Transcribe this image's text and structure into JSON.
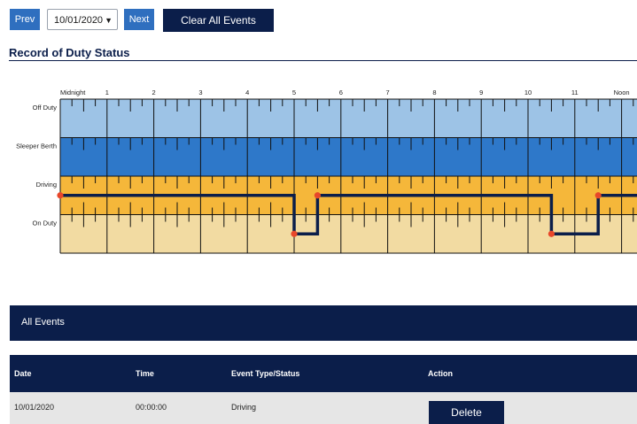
{
  "toolbar": {
    "prev_label": "Prev",
    "date_value": "10/01/2020",
    "next_label": "Next",
    "clear_label": "Clear All Events"
  },
  "page": {
    "title": "Record of Duty Status"
  },
  "grid": {
    "hour_labels": [
      "Midnight",
      "1",
      "2",
      "3",
      "4",
      "5",
      "6",
      "7",
      "8",
      "9",
      "10",
      "11",
      "Noon"
    ],
    "rows": [
      {
        "label": "Off Duty",
        "color": "#9dc3e6"
      },
      {
        "label": "Sleeper Berth",
        "color": "#2e78c9"
      },
      {
        "label": "Driving",
        "color": "#f5b73a"
      },
      {
        "label": "On Duty",
        "color": "#f2dba2"
      }
    ],
    "line_color": "#0b1e4a",
    "marker_color": "#e8472a",
    "status_segments": [
      {
        "status": "Driving",
        "start_hour": 0,
        "end_hour": 5
      },
      {
        "status": "On Duty",
        "start_hour": 5,
        "end_hour": 5.5
      },
      {
        "status": "Driving",
        "start_hour": 5.5,
        "end_hour": 10.5
      },
      {
        "status": "On Duty",
        "start_hour": 10.5,
        "end_hour": 11.5
      },
      {
        "status": "Driving",
        "start_hour": 11.5,
        "end_hour": 12.4
      }
    ]
  },
  "events": {
    "title": "All Events",
    "columns": [
      "Date",
      "Time",
      "Event Type/Status",
      "Action"
    ],
    "rows": [
      {
        "date": "10/01/2020",
        "time": "00:00:00",
        "status": "Driving",
        "action": "Delete"
      }
    ]
  }
}
